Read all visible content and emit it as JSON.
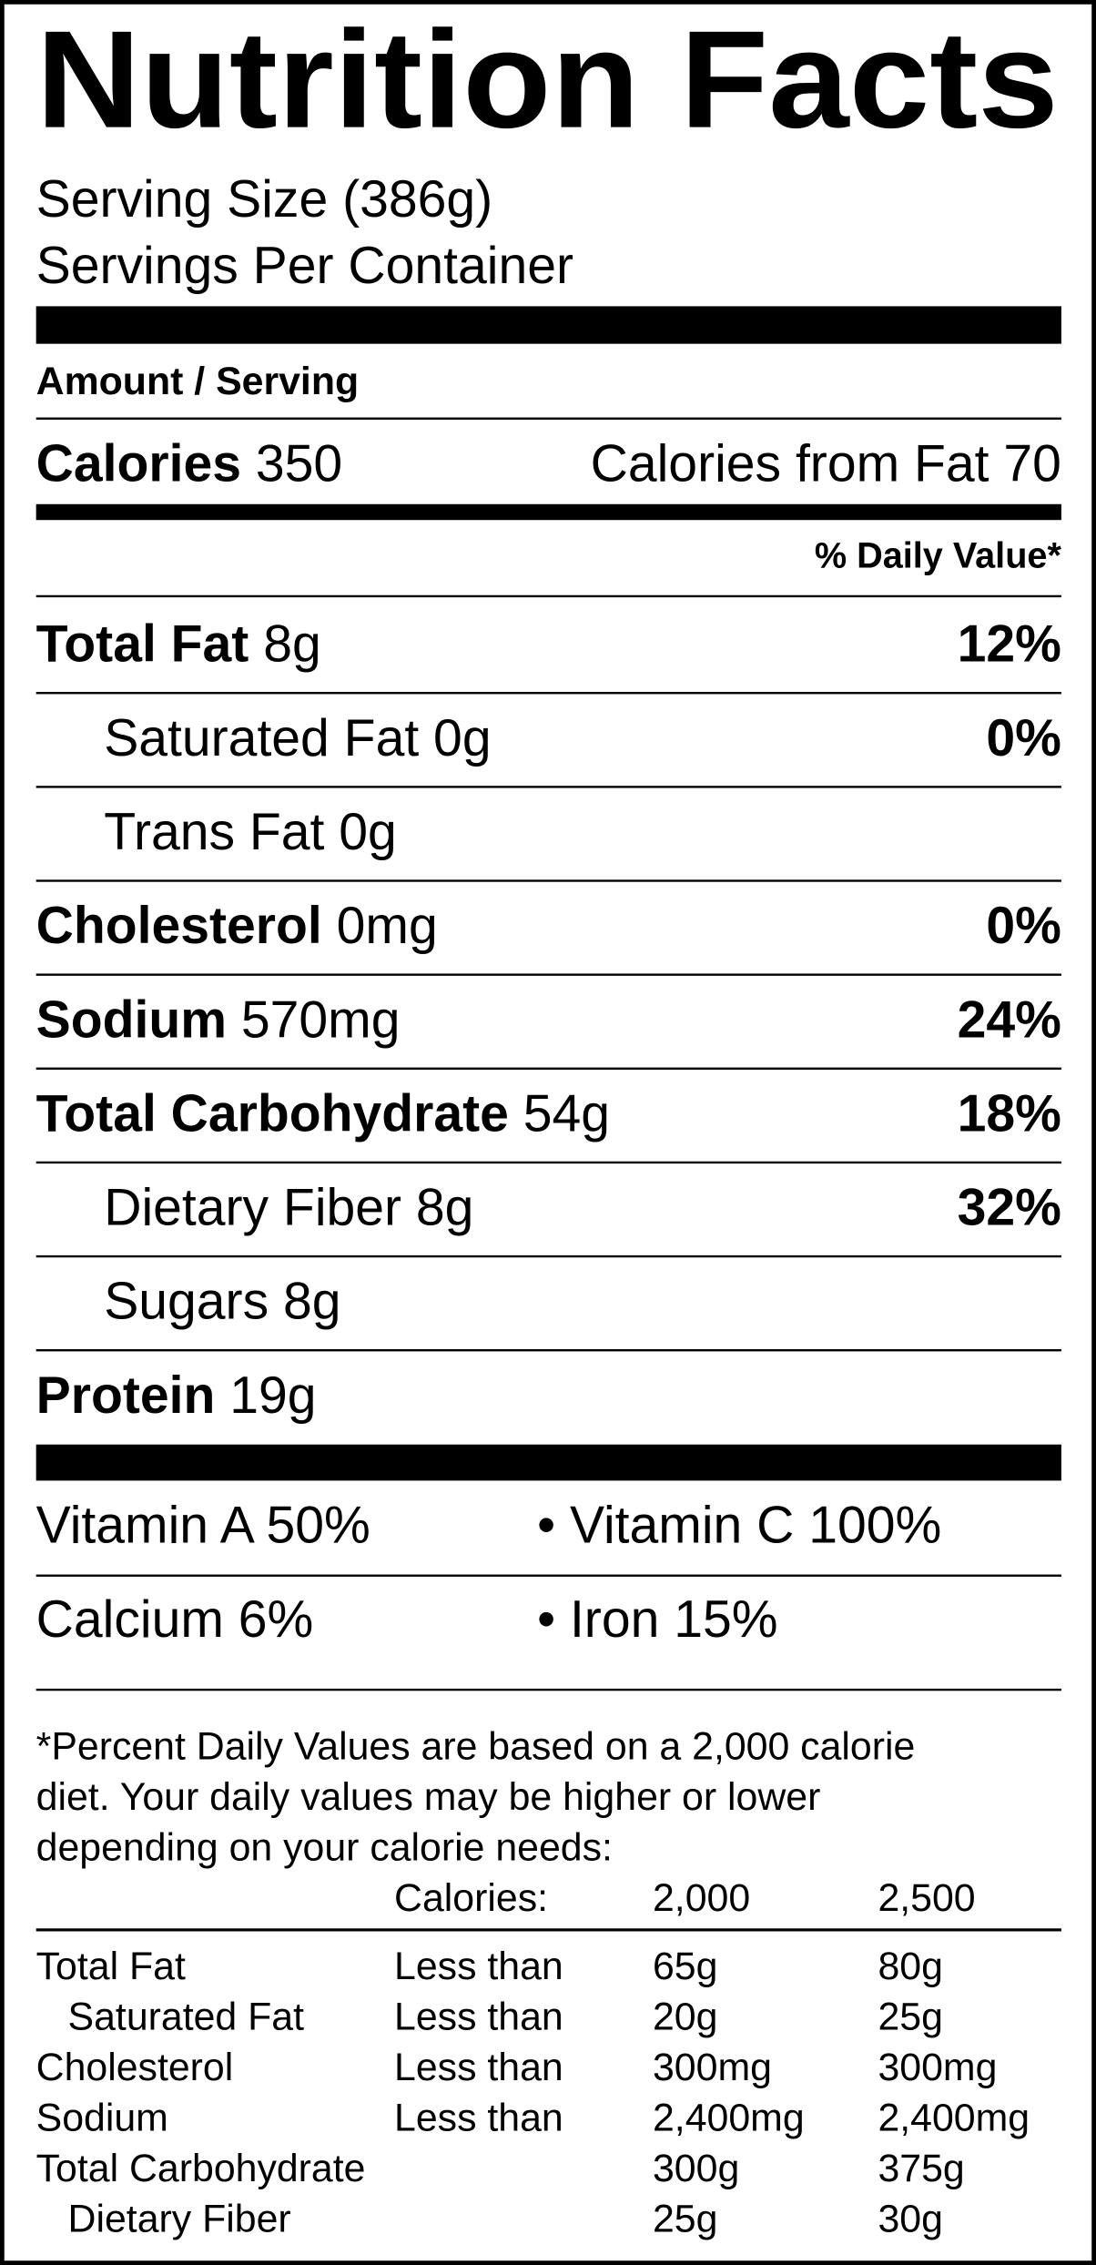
{
  "header": {
    "title": "Nutrition Facts",
    "serving_size": "Serving Size (386g)",
    "servings_per_container": "Servings Per Container"
  },
  "amount_per_serving": "Amount / Serving",
  "calories": {
    "label": "Calories",
    "value": 350
  },
  "calories_from_fat": {
    "label": "Calories from Fat",
    "value": 70
  },
  "daily_value_header": "% Daily Value*",
  "nutrients": [
    {
      "name": "Total Fat",
      "amount": "8g",
      "dv": "12%",
      "sub": [
        {
          "name": "Saturated Fat",
          "amount": "0g",
          "dv": "0%"
        },
        {
          "name": "Trans Fat",
          "amount": "0g"
        }
      ]
    },
    {
      "name": "Cholesterol",
      "amount": "0mg",
      "dv": "0%"
    },
    {
      "name": "Sodium",
      "amount": "570mg",
      "dv": "24%"
    },
    {
      "name": "Total Carbohydrate",
      "amount": "54g",
      "dv": "18%",
      "sub": [
        {
          "name": "Dietary Fiber",
          "amount": "8g",
          "dv": "32%"
        },
        {
          "name": "Sugars",
          "amount": "8g"
        }
      ]
    },
    {
      "name": "Protein",
      "amount": "19g"
    }
  ],
  "vitamins": [
    [
      "Vitamin A 50%",
      "• Vitamin C 100%"
    ],
    [
      "Calcium 6%",
      "• Iron 15%"
    ]
  ],
  "footnote": [
    "*Percent Daily Values are based on a 2,000 calorie",
    "diet. Your daily values may be higher or lower",
    "depending on your calorie needs:"
  ],
  "reference_table": {
    "header": [
      "Calories:",
      "2,000",
      "2,500"
    ],
    "rows": [
      {
        "name": "Total Fat",
        "limit": "Less than",
        "values": [
          "65g",
          "80g"
        ],
        "sub": [
          {
            "name": "Saturated Fat",
            "limit": "Less than",
            "values": [
              "20g",
              "25g"
            ]
          }
        ]
      },
      {
        "name": "Cholesterol",
        "limit": "Less than",
        "values": [
          "300mg",
          "300mg"
        ]
      },
      {
        "name": "Sodium",
        "limit": "Less than",
        "values": [
          "2,400mg",
          "2,400mg"
        ]
      },
      {
        "name": "Total Carbohydrate",
        "values": [
          "300g",
          "375g"
        ],
        "sub": [
          {
            "name": "Dietary Fiber",
            "values": [
              "25g",
              "30g"
            ]
          }
        ]
      }
    ]
  }
}
